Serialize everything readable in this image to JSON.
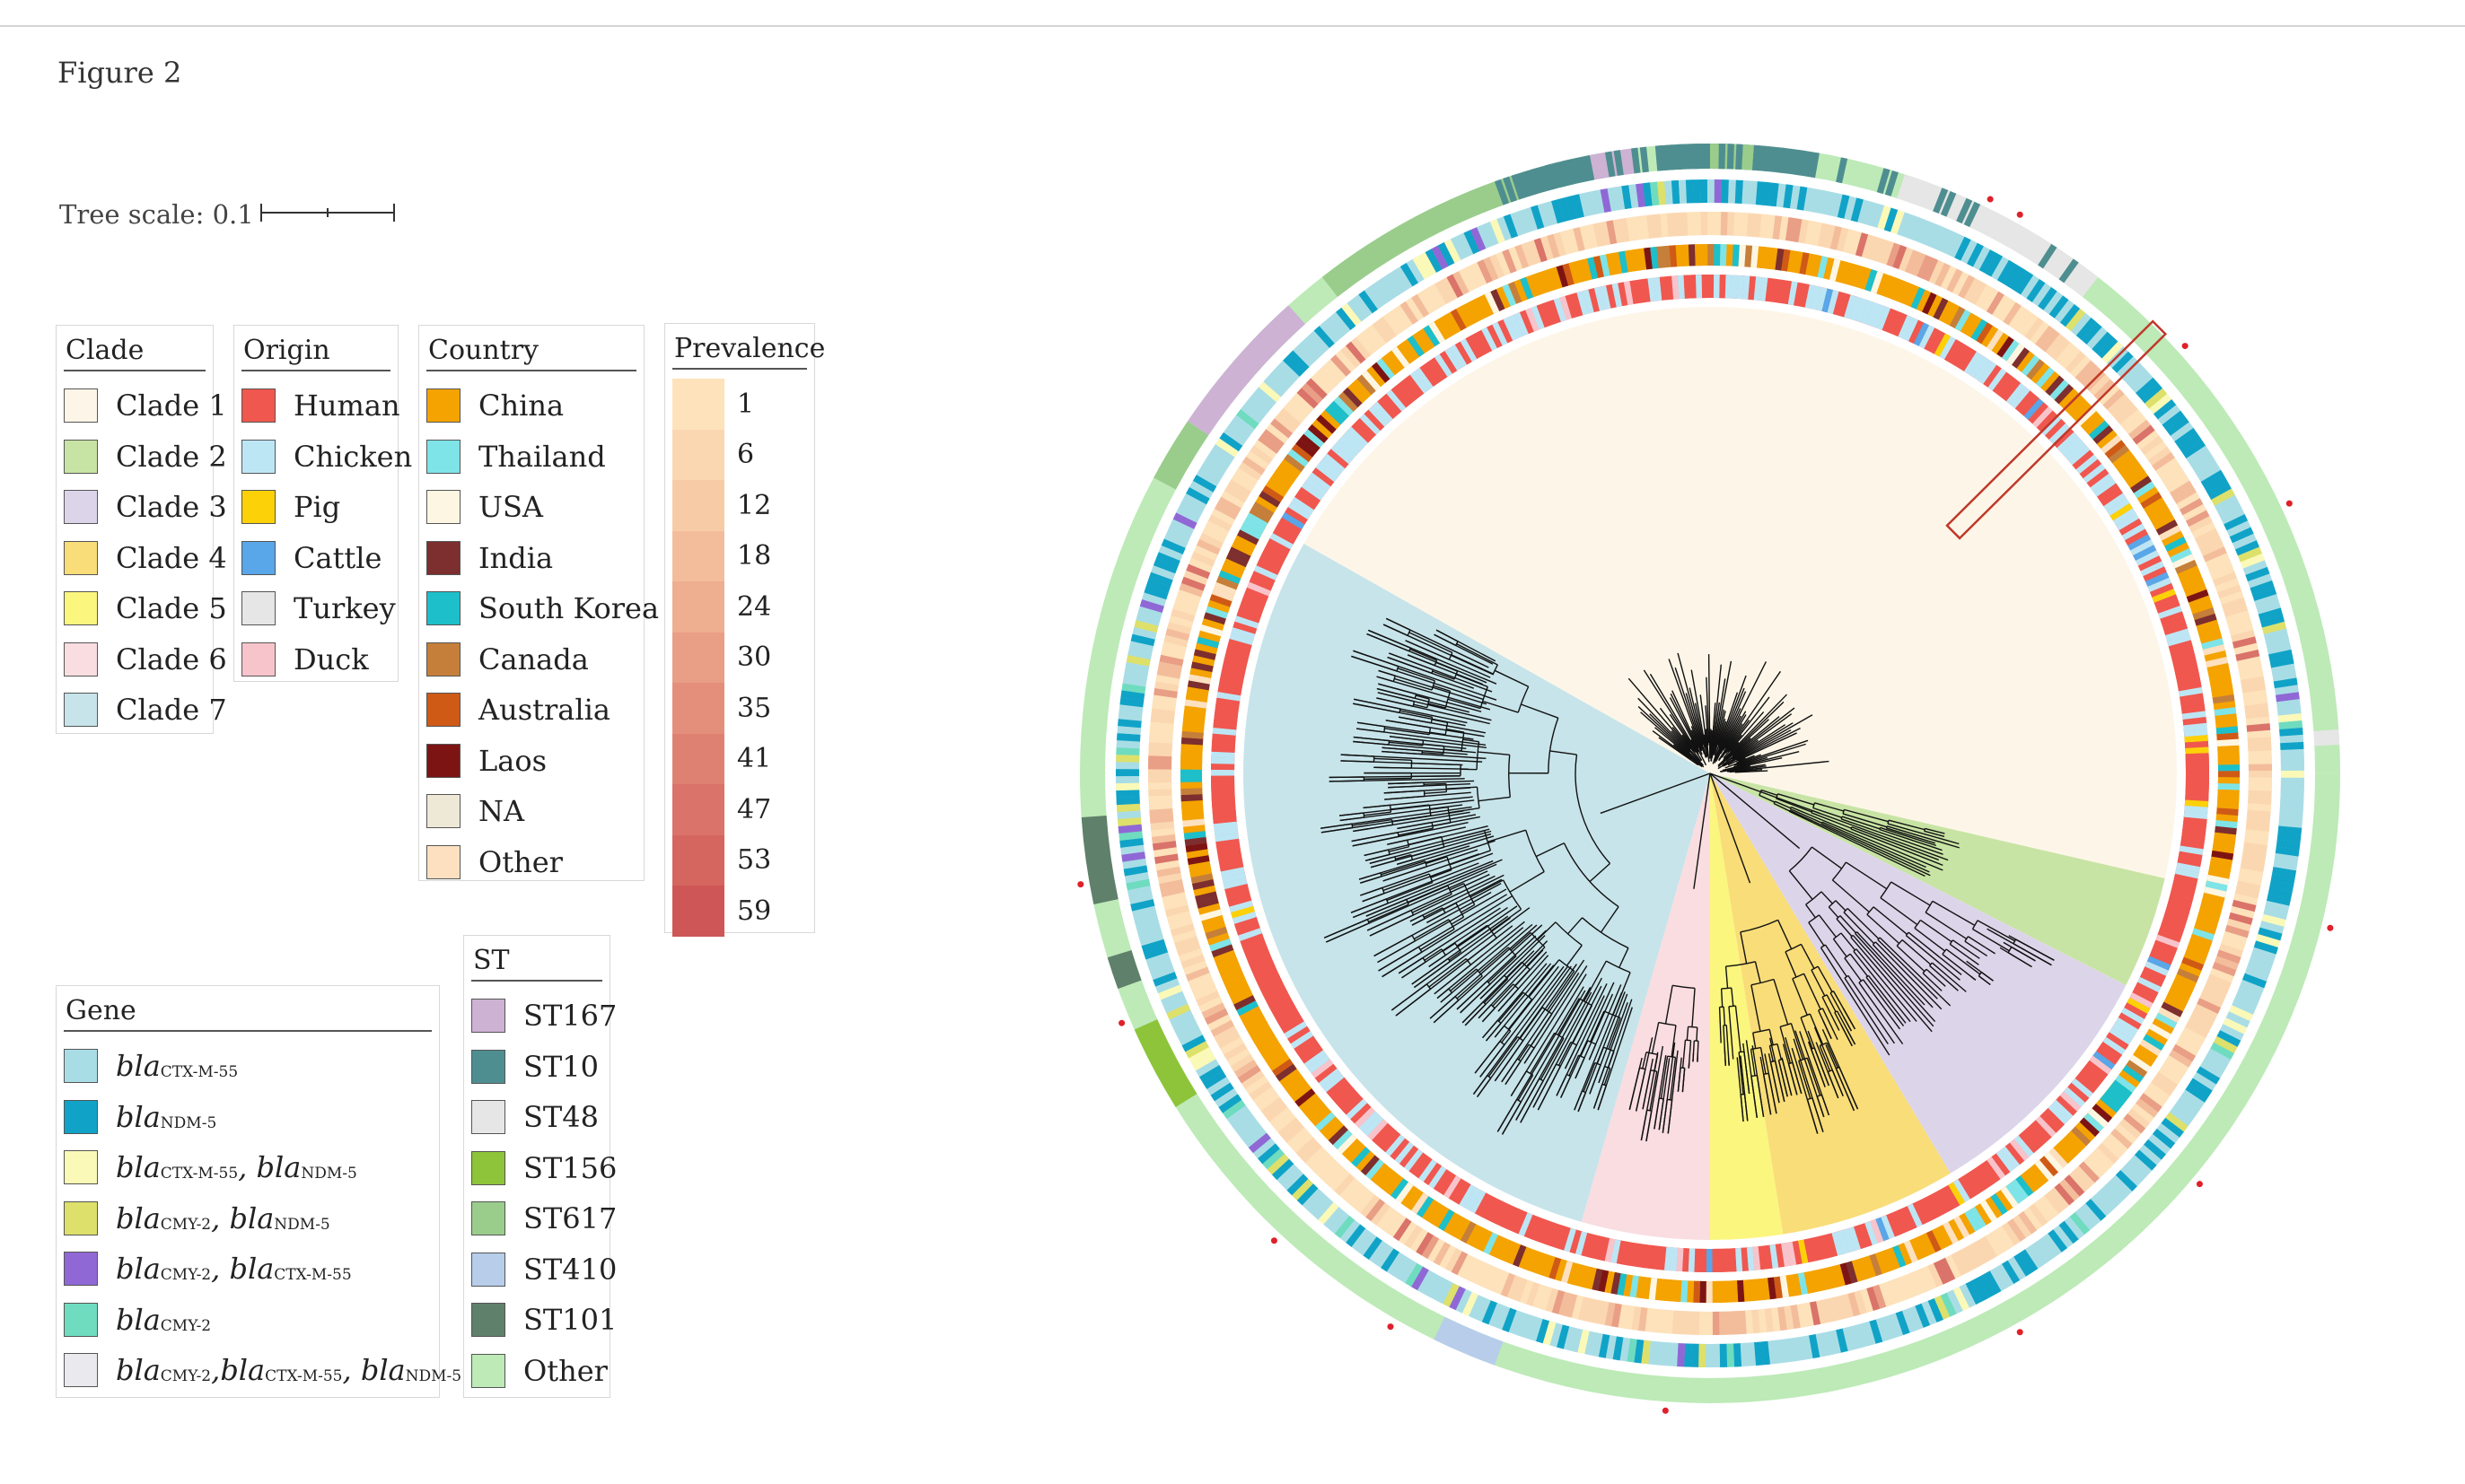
{
  "figure_title": "Figure 2",
  "tree_scale": {
    "label": "Tree scale: 0.1",
    "value": 0.1
  },
  "legends": {
    "clade": {
      "title": "Clade",
      "items": [
        {
          "label": "Clade 1",
          "color": "#fdf6e8"
        },
        {
          "label": "Clade 2",
          "color": "#c8e4a4"
        },
        {
          "label": "Clade 3",
          "color": "#dcd5ea"
        },
        {
          "label": "Clade 4",
          "color": "#f9dd78"
        },
        {
          "label": "Clade 5",
          "color": "#fbf67e"
        },
        {
          "label": "Clade 6",
          "color": "#f9dde1"
        },
        {
          "label": "Clade 7",
          "color": "#c7e4ea"
        }
      ]
    },
    "origin": {
      "title": "Origin",
      "items": [
        {
          "label": "Human",
          "color": "#f0574f"
        },
        {
          "label": "Chicken",
          "color": "#bde6f5"
        },
        {
          "label": "Pig",
          "color": "#fdd108"
        },
        {
          "label": "Cattle",
          "color": "#59a6e8"
        },
        {
          "label": "Turkey",
          "color": "#e6e6e6"
        },
        {
          "label": "Duck",
          "color": "#f8c4cb"
        }
      ]
    },
    "country": {
      "title": "Country",
      "items": [
        {
          "label": "China",
          "color": "#f4a300"
        },
        {
          "label": "Thailand",
          "color": "#7ee4e8"
        },
        {
          "label": "USA",
          "color": "#fdf6e2"
        },
        {
          "label": "India",
          "color": "#7d2e2e"
        },
        {
          "label": "South Korea",
          "color": "#1dbfca"
        },
        {
          "label": "Canada",
          "color": "#c57f3a"
        },
        {
          "label": "Australia",
          "color": "#cf5a16"
        },
        {
          "label": "Laos",
          "color": "#7d1414"
        },
        {
          "label": "NA",
          "color": "#ede9d6"
        },
        {
          "label": "Other",
          "color": "#fde0bf"
        }
      ]
    },
    "prevalence": {
      "title": "Prevalence",
      "items": [
        {
          "label": "1",
          "color": "#fde2bb"
        },
        {
          "label": "6",
          "color": "#fbd7b1"
        },
        {
          "label": "12",
          "color": "#f8cba7"
        },
        {
          "label": "18",
          "color": "#f3bd9b"
        },
        {
          "label": "24",
          "color": "#eeae90"
        },
        {
          "label": "30",
          "color": "#e99e86"
        },
        {
          "label": "35",
          "color": "#e48f7c"
        },
        {
          "label": "41",
          "color": "#df8172"
        },
        {
          "label": "47",
          "color": "#da7369"
        },
        {
          "label": "53",
          "color": "#d5665f"
        },
        {
          "label": "59",
          "color": "#cf5656"
        }
      ]
    },
    "gene": {
      "title": "Gene",
      "items": [
        {
          "label": "blaCTX-M-55",
          "color": "#a9dde6"
        },
        {
          "label": "blaNDM-5",
          "color": "#10a3c7"
        },
        {
          "label": "blaCTX-M-55, blaNDM-5",
          "color": "#fbf9b8"
        },
        {
          "label": "blaCMY-2, blaNDM-5",
          "color": "#dde06a"
        },
        {
          "label": "blaCMY-2, blaCTX-M-55",
          "color": "#9068d6"
        },
        {
          "label": "blaCMY-2",
          "color": "#6fdcc0"
        },
        {
          "label": "blaCMY-2,blaCTX-M-55, blaNDM-5",
          "color": "#e9e9ee"
        }
      ]
    },
    "st": {
      "title": "ST",
      "items": [
        {
          "label": "ST167",
          "color": "#cdb2d4"
        },
        {
          "label": "ST10",
          "color": "#4f8e90"
        },
        {
          "label": "ST48",
          "color": "#e6e6e6"
        },
        {
          "label": "ST156",
          "color": "#8dc43a"
        },
        {
          "label": "ST617",
          "color": "#9acd8c"
        },
        {
          "label": "ST410",
          "color": "#b7cdea"
        },
        {
          "label": "ST101",
          "color": "#5f806a"
        },
        {
          "label": "Other",
          "color": "#bdeab7"
        }
      ]
    }
  },
  "ring_colors": {
    "highlight_box": "#c0392b",
    "st_other": "#bdeab7",
    "gene_bg": "#b6e2ea",
    "prevalence_bg": "#fbd7b1",
    "country_main": "#f4a300",
    "origin_human": "#f0574f",
    "branch": "#111111"
  }
}
